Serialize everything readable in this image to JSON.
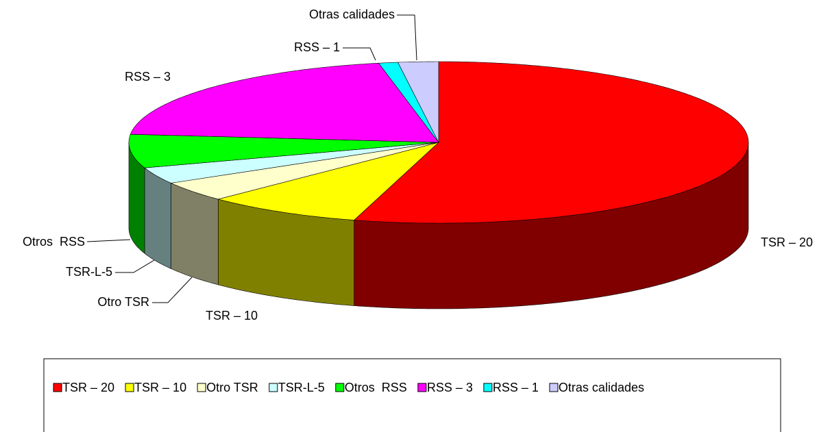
{
  "chart_data": {
    "type": "pie3d",
    "categories": [
      "TSR – 20",
      "TSR – 10",
      "Otro TSR",
      "TSR-L-5",
      "Otros  RSS",
      "RSS – 3",
      "RSS – 1",
      "Otras calidades"
    ],
    "values": [
      54.4,
      8.2,
      4.0,
      3.3,
      6.7,
      20.3,
      1.0,
      2.1
    ],
    "colors": [
      "#ff0000",
      "#ffff00",
      "#ffffcc",
      "#ccffff",
      "#00ff00",
      "#ff00ff",
      "#00ffff",
      "#ccccff"
    ],
    "legend": "bottom"
  }
}
